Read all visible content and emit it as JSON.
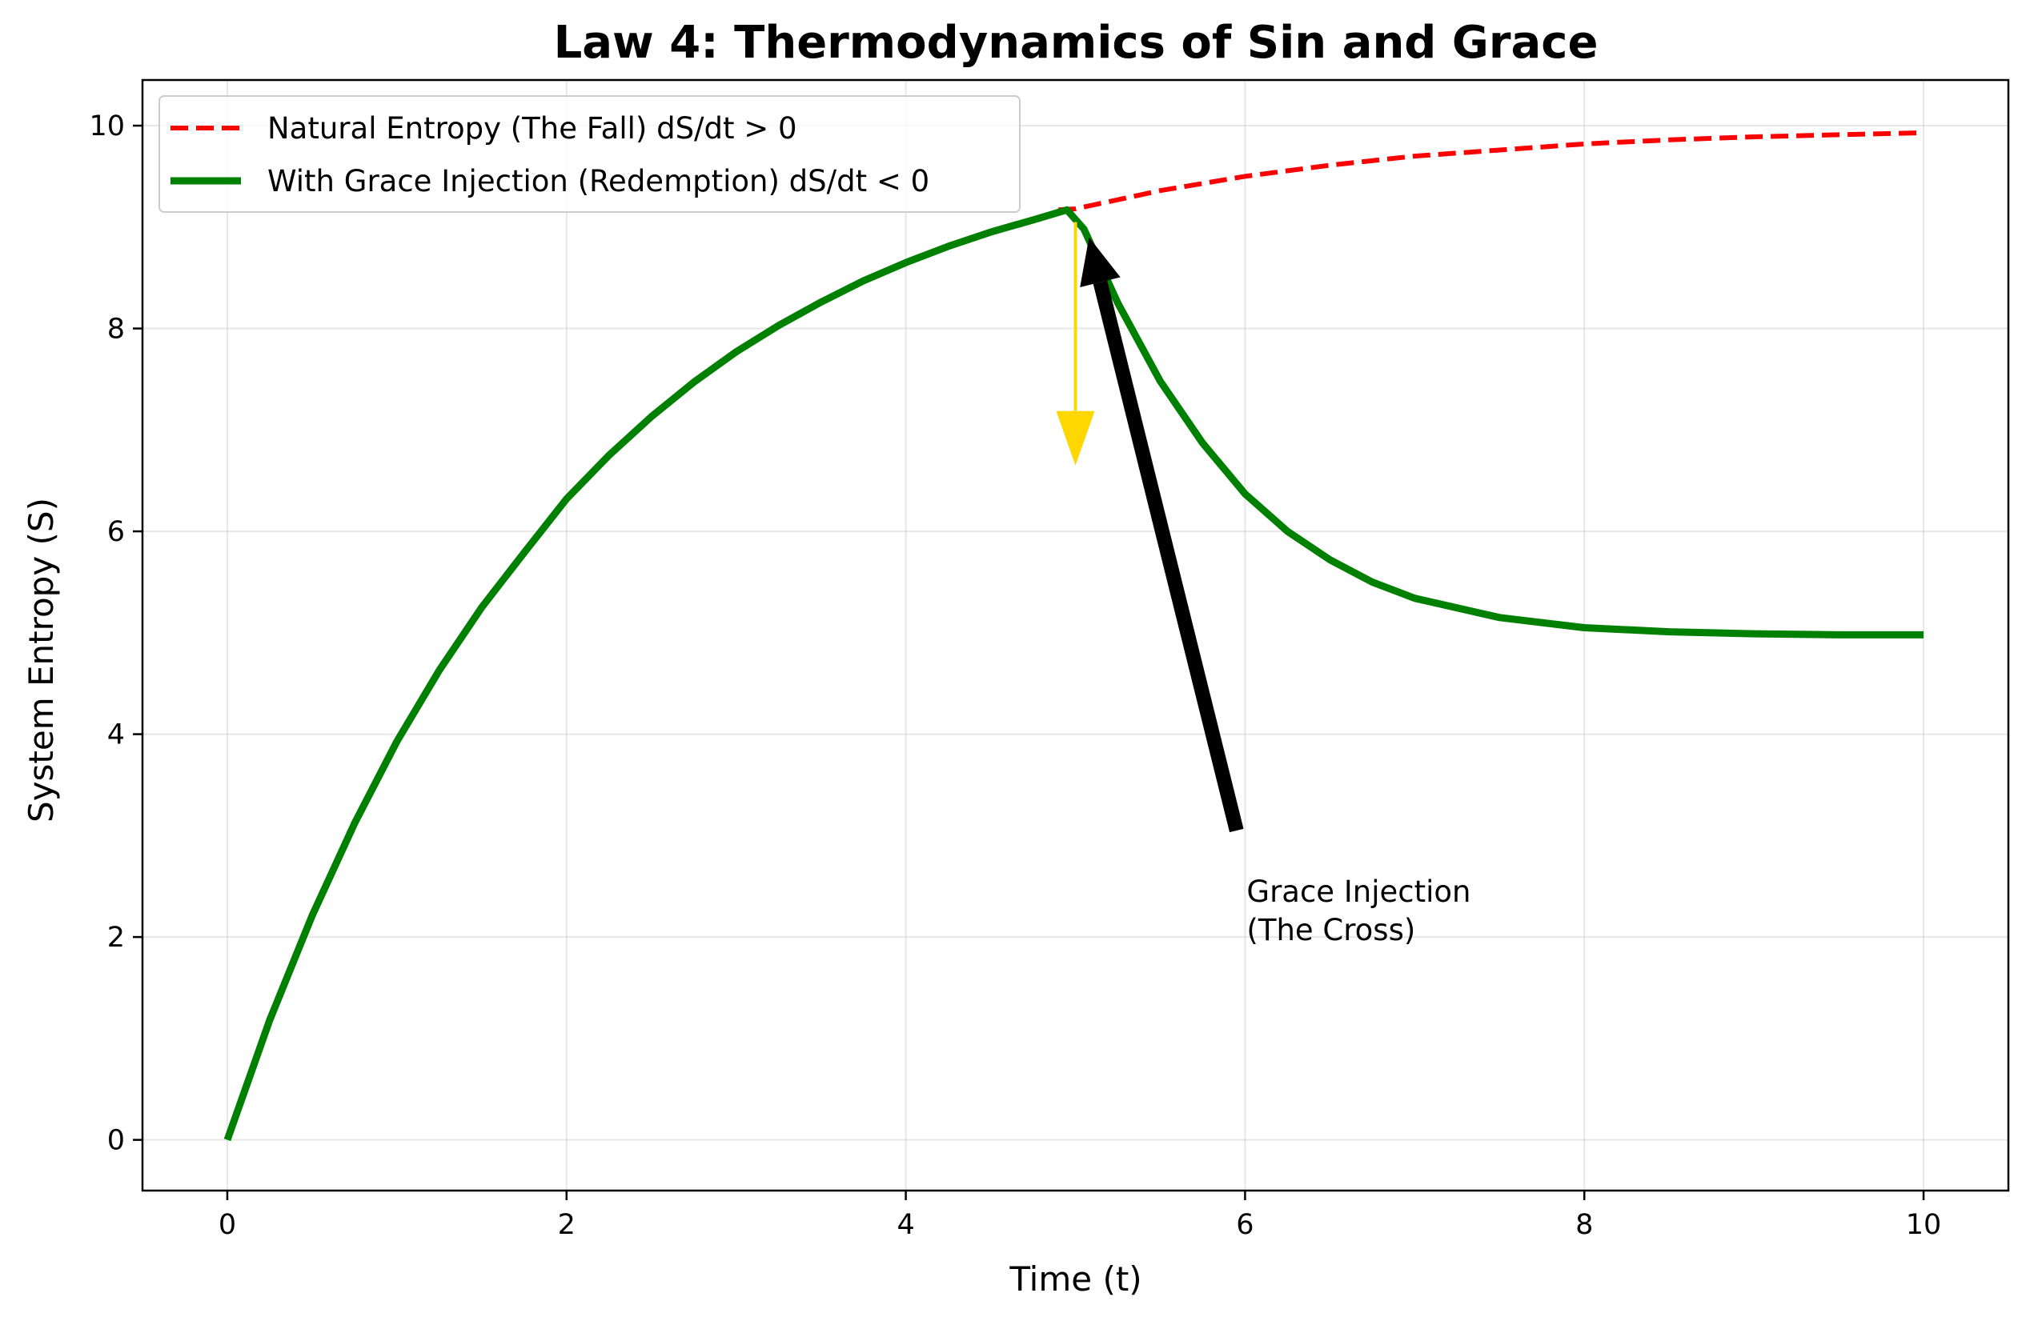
{
  "chart_data": {
    "type": "line",
    "title": "Law 4: Thermodynamics of Sin and Grace",
    "xlabel": "Time (t)",
    "ylabel": "System Entropy (S)",
    "xlim": [
      -0.5,
      10.5
    ],
    "ylim": [
      -0.5,
      10.45
    ],
    "xticks": [
      0,
      2,
      4,
      6,
      8,
      10
    ],
    "xtick_labels": [
      "0",
      "2",
      "4",
      "6",
      "8",
      "10"
    ],
    "yticks": [
      0,
      2,
      4,
      6,
      8,
      10
    ],
    "ytick_labels": [
      "0",
      "2",
      "4",
      "6",
      "8",
      "10"
    ],
    "grid": true,
    "legend_position": "upper-left",
    "series": [
      {
        "name": "Natural Entropy (The Fall) dS/dt > 0",
        "style": "dashed",
        "color": "#ff0000",
        "x_start": 5,
        "x": [
          4.9,
          5.0,
          5.5,
          6.0,
          6.5,
          7.0,
          7.5,
          8.0,
          8.5,
          9.0,
          9.5,
          10.0
        ],
        "y": [
          9.17,
          9.18,
          9.36,
          9.5,
          9.61,
          9.7,
          9.76,
          9.82,
          9.86,
          9.89,
          9.91,
          9.93
        ]
      },
      {
        "name": "With Grace Injection (Redemption) dS/dt < 0",
        "style": "solid",
        "color": "#008000",
        "x": [
          0,
          0.25,
          0.5,
          0.75,
          1.0,
          1.25,
          1.5,
          1.75,
          2.0,
          2.25,
          2.5,
          2.75,
          3.0,
          3.25,
          3.5,
          3.75,
          4.0,
          4.25,
          4.5,
          4.75,
          4.95,
          5.05,
          5.25,
          5.5,
          5.75,
          6.0,
          6.25,
          6.5,
          6.75,
          7.0,
          7.5,
          8.0,
          8.5,
          9.0,
          9.5,
          10.0
        ],
        "y": [
          0.0,
          1.18,
          2.21,
          3.12,
          3.93,
          4.63,
          5.25,
          5.79,
          6.32,
          6.75,
          7.13,
          7.47,
          7.77,
          8.03,
          8.26,
          8.47,
          8.65,
          8.81,
          8.95,
          9.07,
          9.17,
          8.98,
          8.25,
          7.48,
          6.87,
          6.37,
          6.0,
          5.72,
          5.5,
          5.34,
          5.15,
          5.05,
          5.01,
          4.99,
          4.98,
          4.98
        ]
      }
    ],
    "annotations": [
      {
        "text_lines": [
          "Grace Injection",
          "(The Cross)"
        ],
        "text_x": 6.0,
        "text_y": 2.0,
        "arrow_from": [
          5.95,
          3.05
        ],
        "arrow_to": [
          5.08,
          8.9
        ],
        "arrow_color": "#000000"
      },
      {
        "kind": "arrow",
        "arrow_from": [
          5.0,
          9.05
        ],
        "arrow_to": [
          5.0,
          6.65
        ],
        "arrow_color": "#ffd700"
      }
    ]
  }
}
